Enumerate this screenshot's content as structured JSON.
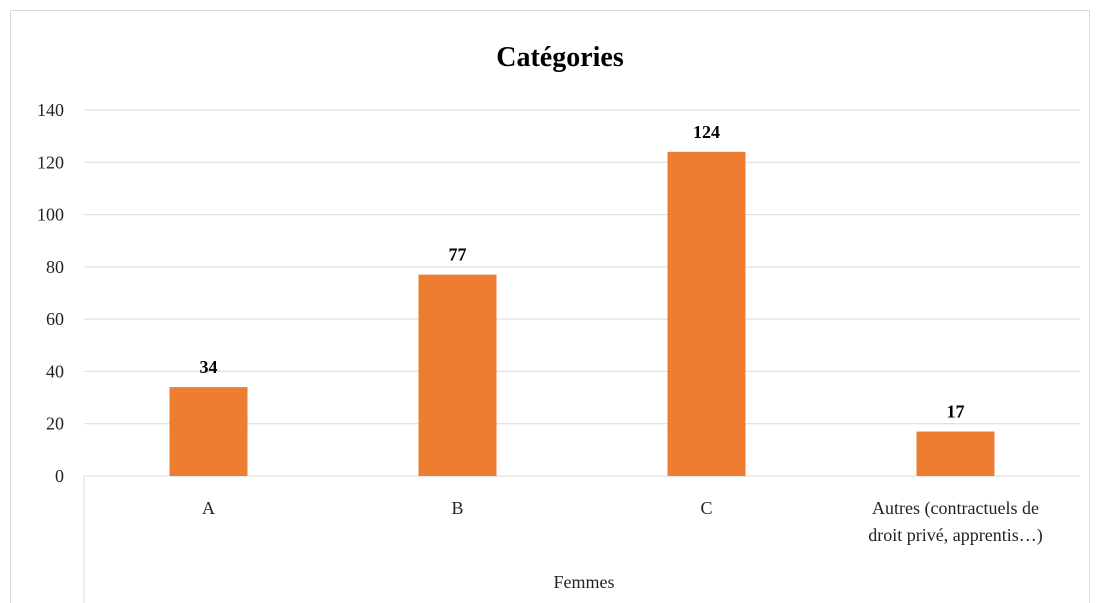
{
  "chart_data": {
    "type": "bar",
    "title": "Catégories",
    "categories": [
      "A",
      "B",
      "C",
      "Autres (contractuels de droit privé, apprentis…)"
    ],
    "category_lines": [
      [
        "A"
      ],
      [
        "B"
      ],
      [
        "C"
      ],
      [
        "Autres (contractuels de",
        "droit privé, apprentis…)"
      ]
    ],
    "group_label": "Femmes",
    "values": [
      34,
      77,
      124,
      17
    ],
    "ylim": [
      0,
      140
    ],
    "yticks": [
      0,
      20,
      40,
      60,
      80,
      100,
      120,
      140
    ],
    "grid": true,
    "legend": "none",
    "bar_color": "#ed7d31",
    "grid_color": "#d9d9d9"
  }
}
